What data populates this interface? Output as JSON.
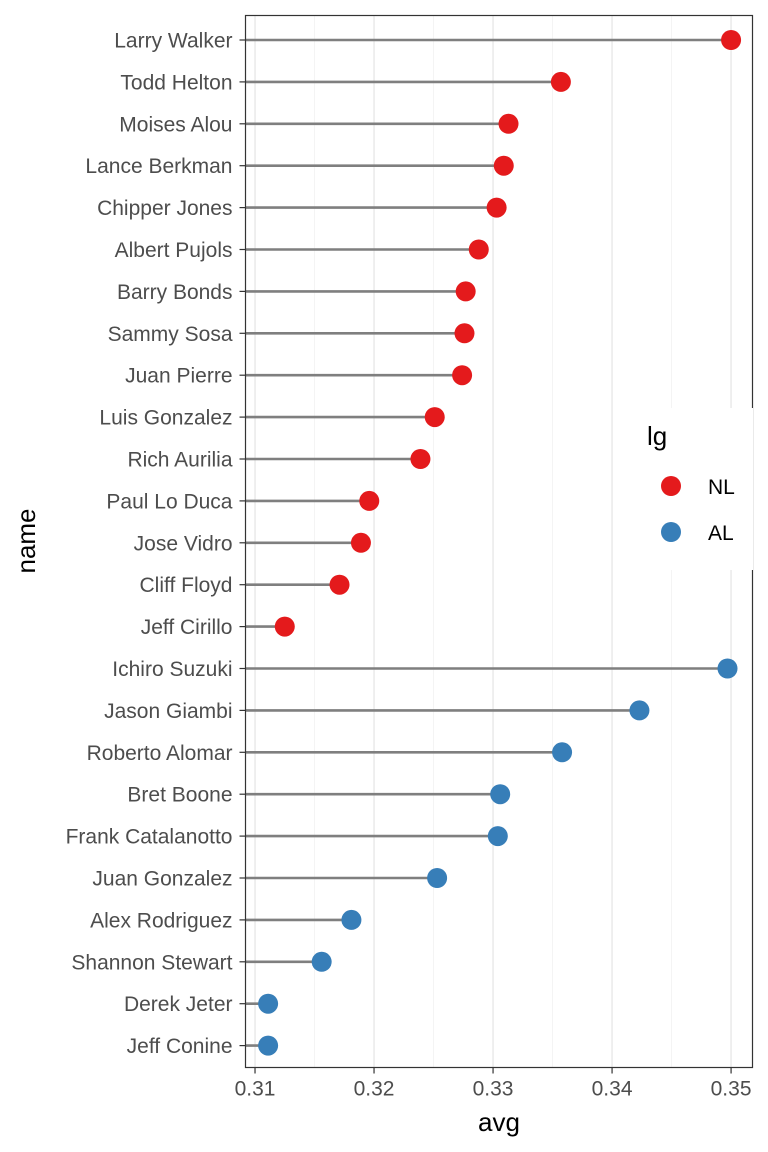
{
  "chart_data": {
    "type": "lollipop",
    "xlabel": "avg",
    "ylabel": "name",
    "xlim": [
      0.3092,
      0.3518
    ],
    "xticks": [
      0.31,
      0.32,
      0.33,
      0.34,
      0.35
    ],
    "xtick_labels": [
      "0.31",
      "0.32",
      "0.33",
      "0.34",
      "0.35"
    ],
    "grid": true,
    "legend": {
      "title": "lg",
      "position": "right",
      "entries": [
        {
          "label": "NL",
          "color": "#E41A1C"
        },
        {
          "label": "AL",
          "color": "#377EB8"
        }
      ]
    },
    "points": [
      {
        "name": "Larry Walker",
        "avg": 0.35,
        "lg": "NL"
      },
      {
        "name": "Todd Helton",
        "avg": 0.3357,
        "lg": "NL"
      },
      {
        "name": "Moises Alou",
        "avg": 0.3313,
        "lg": "NL"
      },
      {
        "name": "Lance Berkman",
        "avg": 0.3309,
        "lg": "NL"
      },
      {
        "name": "Chipper Jones",
        "avg": 0.3303,
        "lg": "NL"
      },
      {
        "name": "Albert Pujols",
        "avg": 0.3288,
        "lg": "NL"
      },
      {
        "name": "Barry Bonds",
        "avg": 0.3277,
        "lg": "NL"
      },
      {
        "name": "Sammy Sosa",
        "avg": 0.3276,
        "lg": "NL"
      },
      {
        "name": "Juan Pierre",
        "avg": 0.3274,
        "lg": "NL"
      },
      {
        "name": "Luis Gonzalez",
        "avg": 0.3251,
        "lg": "NL"
      },
      {
        "name": "Rich Aurilia",
        "avg": 0.3239,
        "lg": "NL"
      },
      {
        "name": "Paul Lo Duca",
        "avg": 0.3196,
        "lg": "NL"
      },
      {
        "name": "Jose Vidro",
        "avg": 0.3189,
        "lg": "NL"
      },
      {
        "name": "Cliff Floyd",
        "avg": 0.3171,
        "lg": "NL"
      },
      {
        "name": "Jeff Cirillo",
        "avg": 0.3125,
        "lg": "NL"
      },
      {
        "name": "Ichiro Suzuki",
        "avg": 0.3497,
        "lg": "AL"
      },
      {
        "name": "Jason Giambi",
        "avg": 0.3423,
        "lg": "AL"
      },
      {
        "name": "Roberto Alomar",
        "avg": 0.3358,
        "lg": "AL"
      },
      {
        "name": "Bret Boone",
        "avg": 0.3306,
        "lg": "AL"
      },
      {
        "name": "Frank Catalanotto",
        "avg": 0.3304,
        "lg": "AL"
      },
      {
        "name": "Juan Gonzalez",
        "avg": 0.3253,
        "lg": "AL"
      },
      {
        "name": "Alex Rodriguez",
        "avg": 0.3181,
        "lg": "AL"
      },
      {
        "name": "Shannon Stewart",
        "avg": 0.3156,
        "lg": "AL"
      },
      {
        "name": "Derek Jeter",
        "avg": 0.3111,
        "lg": "AL"
      },
      {
        "name": "Jeff Conine",
        "avg": 0.3111,
        "lg": "AL"
      }
    ]
  }
}
